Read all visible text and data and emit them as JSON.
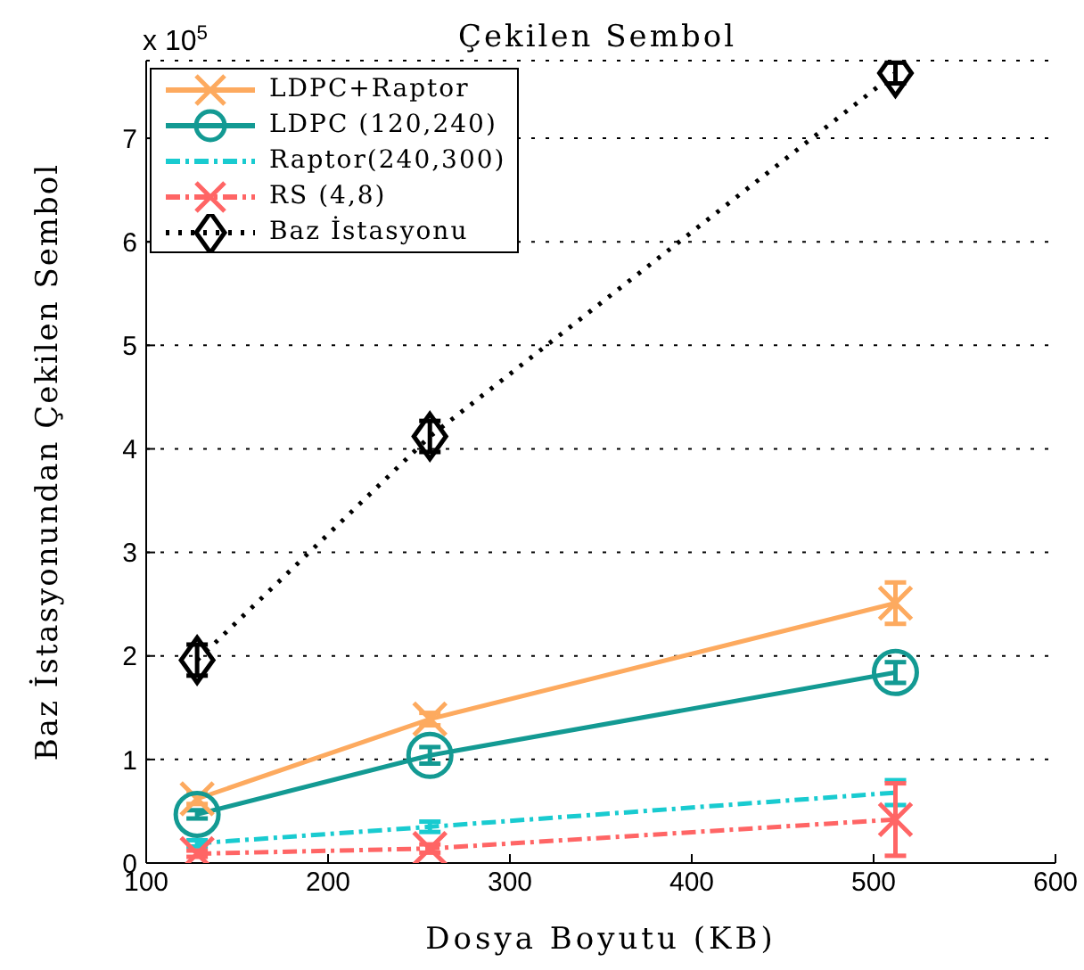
{
  "chart_data": {
    "type": "line",
    "title": "Çekilen Sembol",
    "xlabel": "Dosya Boyutu (KB)",
    "ylabel": "Baz İstasyonundan Çekilen Sembol",
    "annotations": [
      "x 10$^{5}$"
    ],
    "x": [
      128,
      256,
      512
    ],
    "xlim": [
      100,
      600
    ],
    "xticks": [
      100,
      200,
      300,
      400,
      500,
      600
    ],
    "ylim": [
      0,
      7.75
    ],
    "yticks": [
      0,
      1,
      2,
      3,
      4,
      5,
      6,
      7
    ],
    "grid": "y",
    "legend": "top left",
    "series": [
      {
        "name": "LDPC+Raptor",
        "color": "#fdaa5f",
        "values": [
          0.62,
          1.39,
          2.51
        ],
        "errors": [
          0.05,
          0.06,
          0.2
        ],
        "marker": "cross",
        "line_style": "solid"
      },
      {
        "name": "LDPC (120,240)",
        "color": "#139a93",
        "values": [
          0.47,
          1.04,
          1.84
        ],
        "errors": [
          0.04,
          0.08,
          0.1
        ],
        "marker": "circle",
        "line_style": "solid"
      },
      {
        "name": "Raptor(240,300)",
        "color": "#19cbd0",
        "values": [
          0.19,
          0.35,
          0.68
        ],
        "errors": [
          0.03,
          0.05,
          0.12
        ],
        "marker": "none",
        "line_style": "dashed"
      },
      {
        "name": "RS (4,8)",
        "color": "#ff6565",
        "values": [
          0.09,
          0.14,
          0.42
        ],
        "errors": [
          0.03,
          0.04,
          0.35
        ],
        "marker": "cross",
        "line_style": "dashed"
      },
      {
        "name": "Baz İstasyonu",
        "color": "#000000",
        "values": [
          1.96,
          4.12,
          7.63
        ],
        "errors": [
          0.15,
          0.15,
          0.1
        ],
        "marker": "diamond",
        "line_style": "dotted"
      }
    ]
  }
}
